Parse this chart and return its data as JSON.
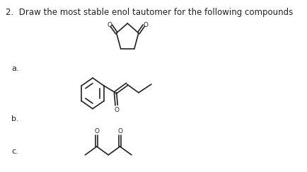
{
  "title": "2.  Draw the most stable enol tautomer for the following compounds",
  "bg_color": "#ffffff",
  "text_color": "#222222",
  "label_a": "a.",
  "label_b": "b.",
  "label_c": "c.",
  "label_fontsize": 8.0,
  "title_fontsize": 8.5
}
